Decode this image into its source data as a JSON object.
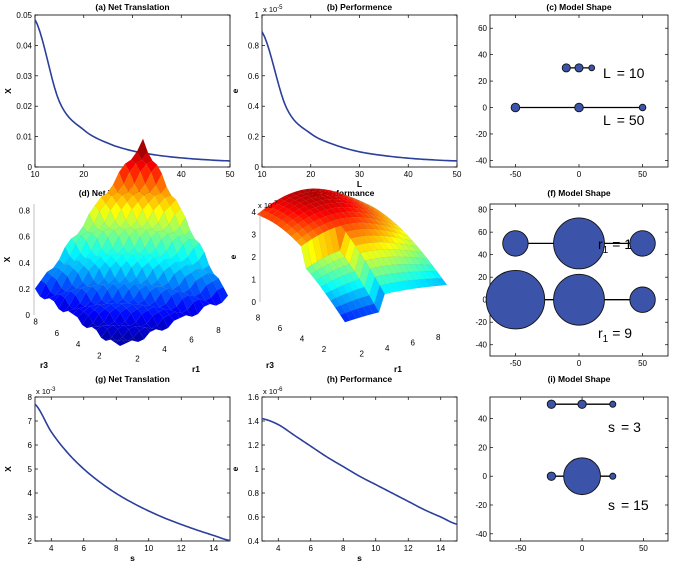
{
  "chart_data": [
    {
      "type": "line",
      "title": "(a) Net Translation",
      "xlabel": "L",
      "ylabel": "X",
      "x": [
        10,
        15,
        20,
        25,
        30,
        35,
        40,
        45,
        50
      ],
      "series": [
        {
          "values": [
            0.0485,
            0.0215,
            0.0122,
            0.0078,
            0.0053,
            0.0039,
            0.003,
            0.0024,
            0.002
          ]
        }
      ],
      "xlim": [
        10,
        50
      ],
      "ylim": [
        0,
        0.05
      ],
      "xticks": [
        "10",
        "20",
        "30",
        "40",
        "50"
      ],
      "yticks": [
        "0",
        "0.01",
        "0.02",
        "0.03",
        "0.04",
        "0.05"
      ],
      "color": "#2b3f9b"
    },
    {
      "type": "line",
      "title": "(b) Performence",
      "xlabel": "L",
      "ylabel": "e",
      "y_exponent": "x 10",
      "y_exponent_power": "-5",
      "x": [
        10,
        15,
        20,
        25,
        30,
        35,
        40,
        45,
        50
      ],
      "series": [
        {
          "values": [
            0.89,
            0.39,
            0.22,
            0.145,
            0.1,
            0.075,
            0.058,
            0.047,
            0.04
          ]
        }
      ],
      "xlim": [
        10,
        50
      ],
      "ylim": [
        0,
        1
      ],
      "xticks": [
        "10",
        "20",
        "30",
        "40",
        "50"
      ],
      "yticks": [
        "0",
        "0.2",
        "0.4",
        "0.6",
        "0.8",
        "1"
      ],
      "color": "#2b3f9b"
    },
    {
      "type": "scatter",
      "title": "(c) Model Shape",
      "xticks": [
        "-50",
        "0",
        "50"
      ],
      "yticks": [
        "-40",
        "-20",
        "0",
        "20",
        "40",
        "60"
      ],
      "xlim": [
        -70,
        70
      ],
      "ylim": [
        -45,
        70
      ],
      "annotations": [
        {
          "label": "L",
          "eq": "= 10"
        },
        {
          "label": "L",
          "eq": "= 50"
        }
      ]
    },
    {
      "type": "heatmap",
      "title": "(d) Net Translation",
      "zlabel": "X",
      "xlabel": "r1",
      "ylabel": "r3",
      "zticks": [
        "0",
        "0.2",
        "0.4",
        "0.6",
        "0.8"
      ],
      "xticks": [
        "2",
        "4",
        "6",
        "8"
      ],
      "yticks": [
        "2",
        "4",
        "6",
        "8"
      ],
      "zlim": [
        0,
        0.85
      ]
    },
    {
      "type": "heatmap",
      "title": "(e) Performance",
      "zlabel": "e",
      "xlabel": "r1",
      "ylabel": "r3",
      "z_exponent": "x 10",
      "z_exponent_power": "-7",
      "zticks": [
        "0",
        "1",
        "2",
        "3",
        "4"
      ],
      "xticks": [
        "2",
        "4",
        "6",
        "8"
      ],
      "yticks": [
        "2",
        "4",
        "6",
        "8"
      ],
      "zlim": [
        0,
        4
      ]
    },
    {
      "type": "scatter",
      "title": "(f) Model Shape",
      "xticks": [
        "-50",
        "0",
        "50"
      ],
      "yticks": [
        "-40",
        "-20",
        "0",
        "20",
        "40",
        "60",
        "80"
      ],
      "xlim": [
        -70,
        70
      ],
      "ylim": [
        -50,
        85
      ],
      "annotations": [
        {
          "label": "r",
          "sub": "1",
          "eq": "= 1"
        },
        {
          "label": "r",
          "sub": "1",
          "eq": "= 9"
        }
      ]
    },
    {
      "type": "line",
      "title": "(g) Net Translation",
      "xlabel": "s",
      "ylabel": "X",
      "y_exponent": "x 10",
      "y_exponent_power": "-3",
      "x": [
        3,
        4,
        5,
        6,
        7,
        8,
        9,
        10,
        11,
        12,
        13,
        14,
        15
      ],
      "series": [
        {
          "values": [
            7.7,
            6.55,
            5.68,
            5.0,
            4.45,
            3.98,
            3.59,
            3.25,
            2.95,
            2.69,
            2.45,
            2.23,
            2.02
          ]
        }
      ],
      "xlim": [
        3,
        15
      ],
      "ylim": [
        2,
        8
      ],
      "xticks": [
        "4",
        "6",
        "8",
        "10",
        "12",
        "14"
      ],
      "yticks": [
        "2",
        "3",
        "4",
        "5",
        "6",
        "7",
        "8"
      ],
      "color": "#2b3f9b"
    },
    {
      "type": "line",
      "title": "(h) Performance",
      "xlabel": "s",
      "ylabel": "e",
      "y_exponent": "x 10",
      "y_exponent_power": "-6",
      "x": [
        3,
        4,
        5,
        6,
        7,
        8,
        9,
        10,
        11,
        12,
        13,
        14,
        15
      ],
      "series": [
        {
          "values": [
            1.42,
            1.37,
            1.28,
            1.19,
            1.1,
            1.02,
            0.94,
            0.87,
            0.8,
            0.73,
            0.66,
            0.6,
            0.54
          ]
        }
      ],
      "xlim": [
        3,
        15
      ],
      "ylim": [
        0.4,
        1.6
      ],
      "xticks": [
        "4",
        "6",
        "8",
        "10",
        "12",
        "14"
      ],
      "yticks": [
        "0.4",
        "0.6",
        "0.8",
        "1",
        "1.2",
        "1.4",
        "1.6"
      ],
      "color": "#2b3f9b"
    },
    {
      "type": "scatter",
      "title": "(i) Model Shape",
      "xticks": [
        "-50",
        "0",
        "50"
      ],
      "yticks": [
        "-40",
        "-20",
        "0",
        "20",
        "40"
      ],
      "xlim": [
        -75,
        70
      ],
      "ylim": [
        -45,
        55
      ],
      "annotations": [
        {
          "label": "s",
          "eq": "= 3"
        },
        {
          "label": "s",
          "eq": "= 15"
        }
      ]
    }
  ]
}
